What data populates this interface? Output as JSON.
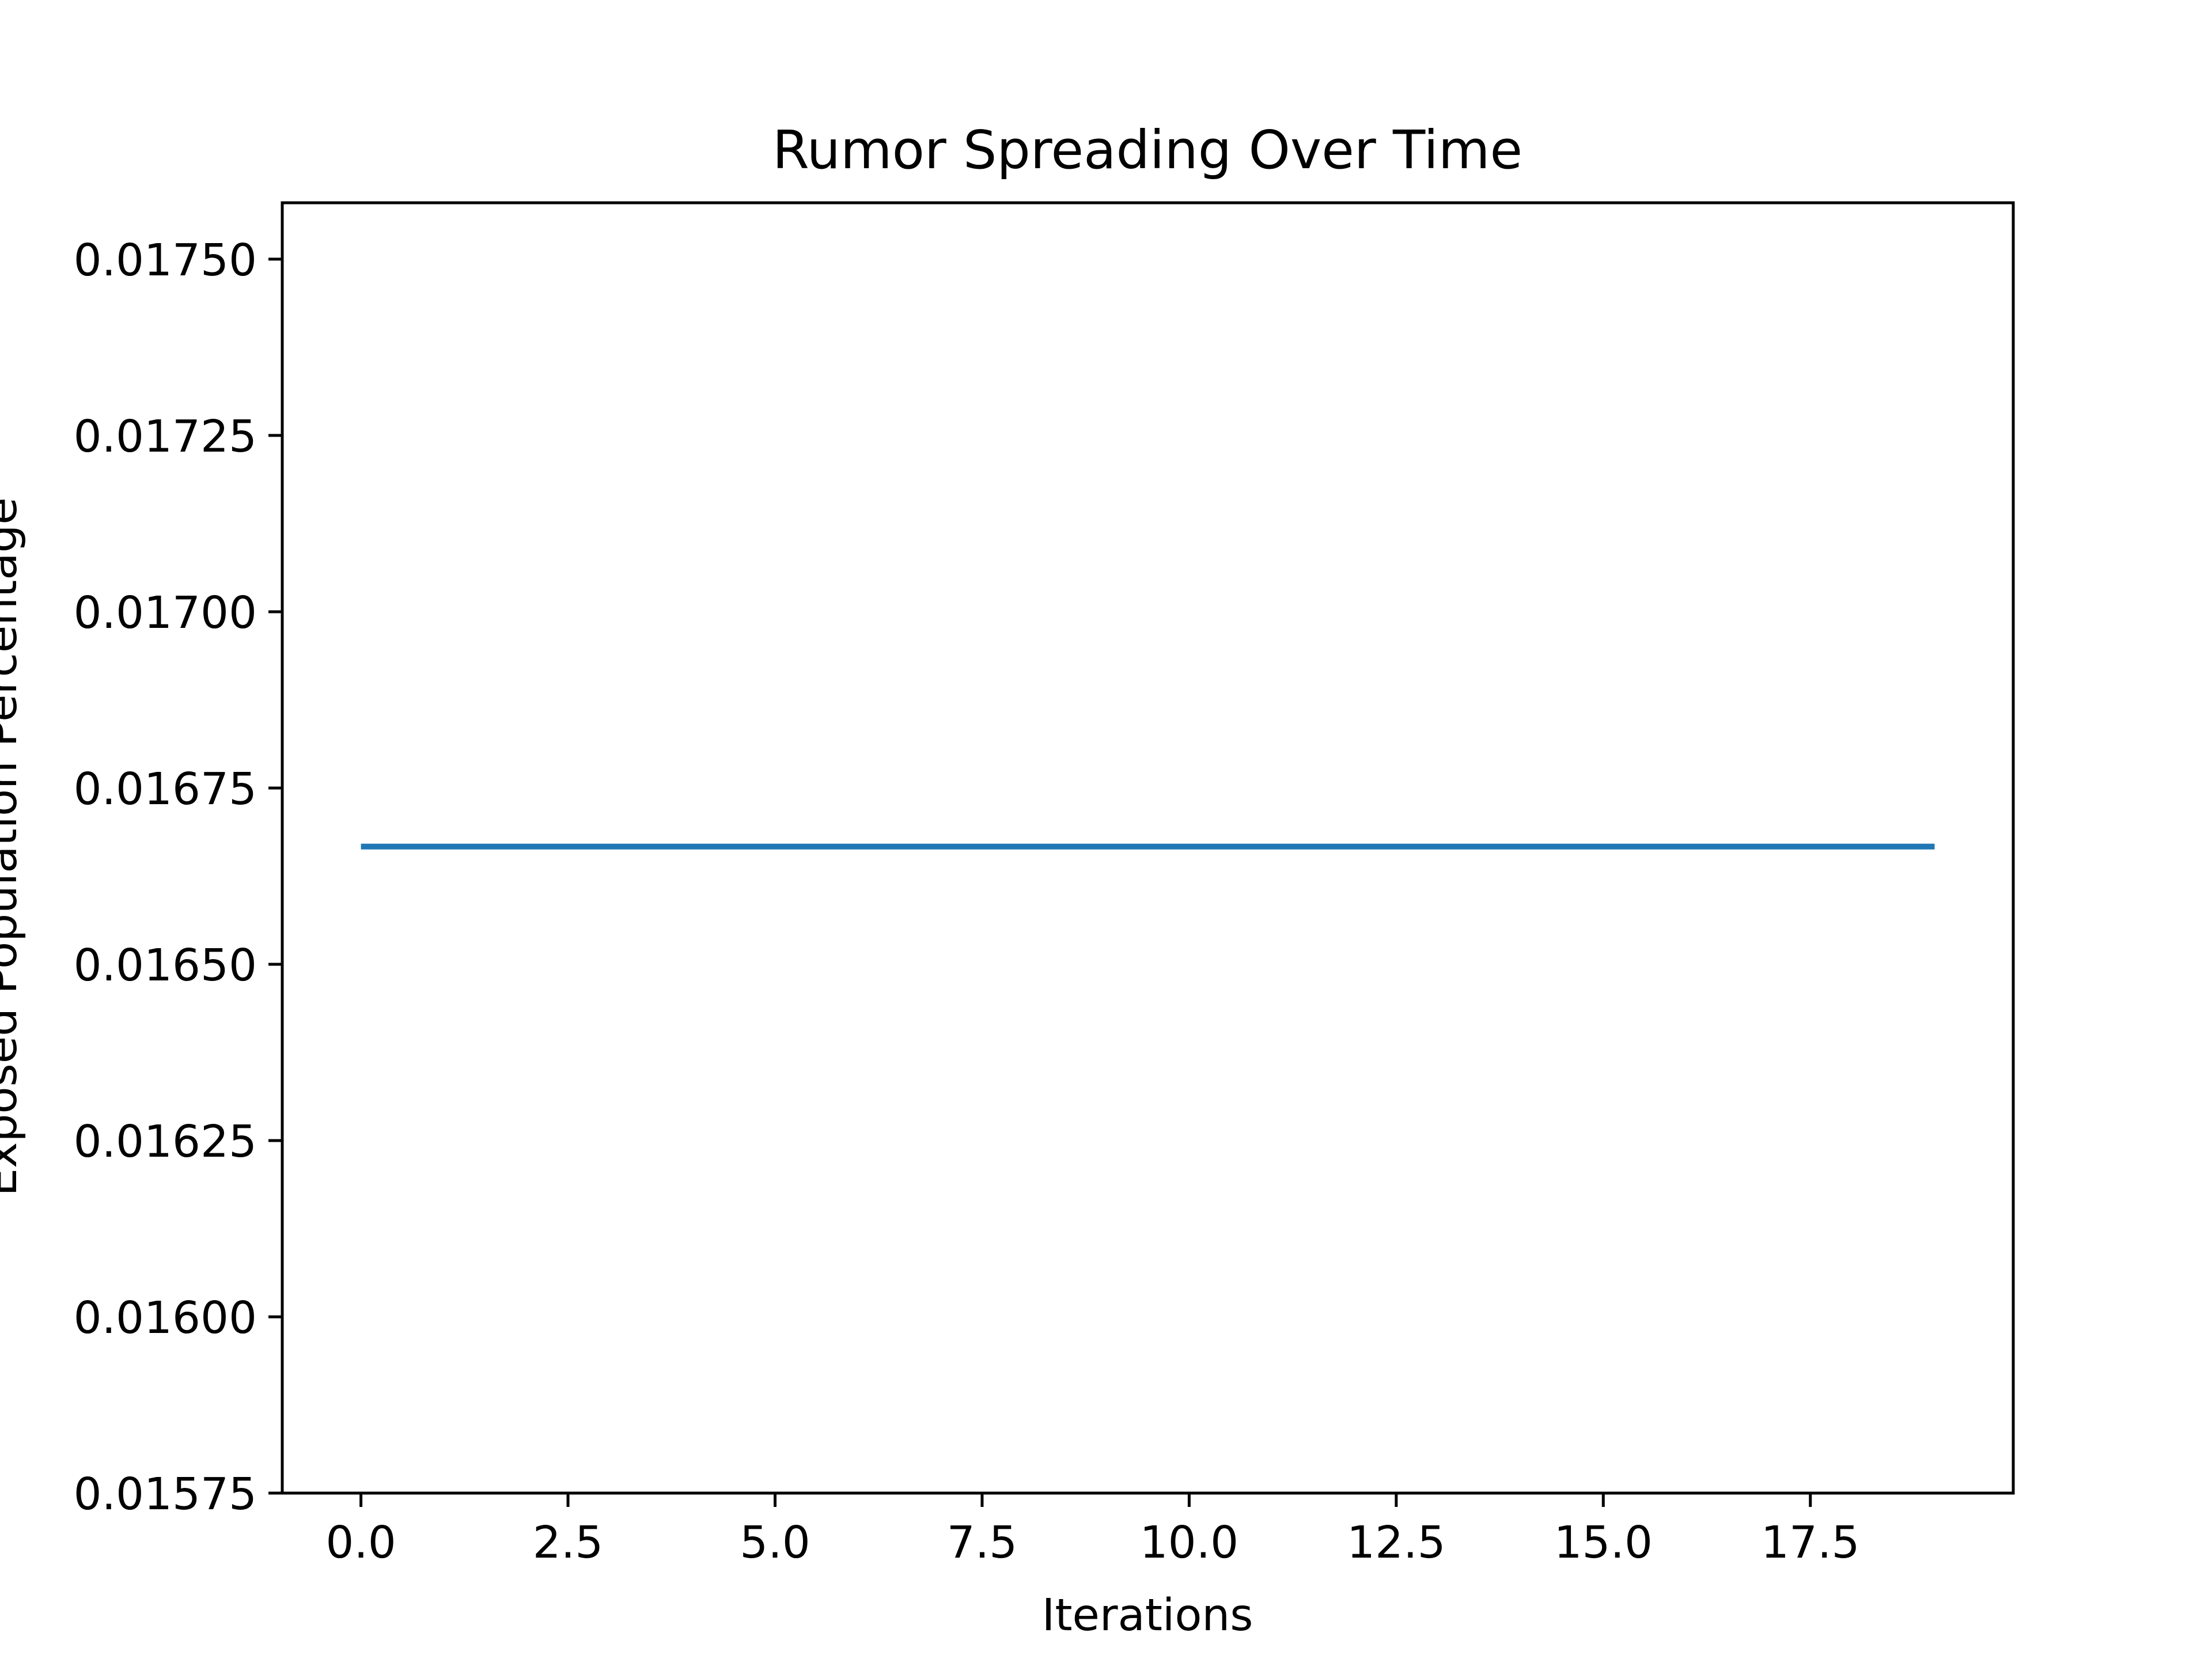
{
  "chart_data": {
    "type": "line",
    "title": "Rumor Spreading Over Time",
    "xlabel": "Iterations",
    "ylabel": "Exposed Population Percentage",
    "xlim": [
      -0.95,
      19.95
    ],
    "ylim": [
      0.01575,
      0.01758
    ],
    "xticks": [
      0.0,
      2.5,
      5.0,
      7.5,
      10.0,
      12.5,
      15.0,
      17.5
    ],
    "xtick_labels": [
      "0.0",
      "2.5",
      "5.0",
      "7.5",
      "10.0",
      "12.5",
      "15.0",
      "17.5"
    ],
    "yticks": [
      0.01575,
      0.016,
      0.01625,
      0.0165,
      0.01675,
      0.017,
      0.01725,
      0.0175
    ],
    "ytick_labels": [
      "0.01575",
      "0.01600",
      "0.01625",
      "0.01650",
      "0.01675",
      "0.01700",
      "0.01725",
      "0.01750"
    ],
    "grid": false,
    "series": [
      {
        "color": "#1f77b4",
        "x": [
          0,
          1,
          2,
          3,
          4,
          5,
          6,
          7,
          8,
          9,
          10,
          11,
          12,
          13,
          14,
          15,
          16,
          17,
          18,
          19
        ],
        "y": [
          0.016667,
          0.016667,
          0.016667,
          0.016667,
          0.016667,
          0.016667,
          0.016667,
          0.016667,
          0.016667,
          0.016667,
          0.016667,
          0.016667,
          0.016667,
          0.016667,
          0.016667,
          0.016667,
          0.016667,
          0.016667,
          0.016667,
          0.016667
        ]
      }
    ]
  }
}
